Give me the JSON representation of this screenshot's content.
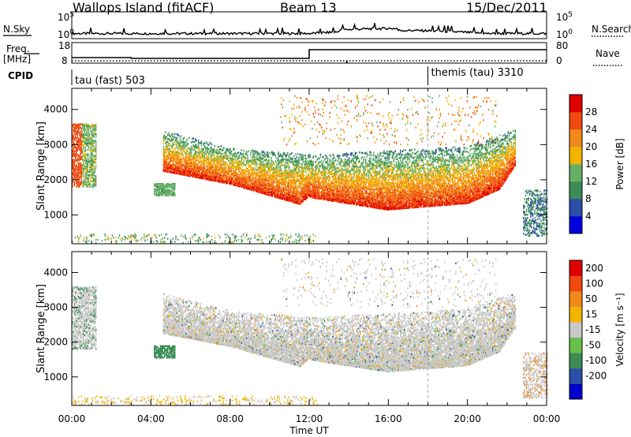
{
  "header": {
    "title": "Wallops Island (fitACF)",
    "beam": "Beam 13",
    "date": "15/Dec/2011"
  },
  "colors": {
    "power_scale": [
      "#0000dd",
      "#2a4fa8",
      "#3d8c55",
      "#66b066",
      "#f2b400",
      "#f28a1a",
      "#f04a10",
      "#e00000"
    ],
    "velocity_scale": [
      "#e00000",
      "#f04a10",
      "#f28a1a",
      "#f2b400",
      "#c8c8c8",
      "#66c04a",
      "#3d8c55",
      "#2a4fa8",
      "#0000cc"
    ]
  },
  "chart_data": [
    {
      "type": "line",
      "panel": "noise",
      "left_label": "N.Sky",
      "right_label": "N.Search",
      "left_ticks": [
        "10^5",
        "10^0"
      ],
      "right_ticks": [
        "10^5",
        "10^0"
      ]
    },
    {
      "type": "line",
      "panel": "frequency",
      "left_label": "Freq.",
      "left_unit": "[MHz]",
      "right_label": "Nave",
      "left_ticks": [
        "18",
        "8"
      ],
      "right_ticks": [
        "80",
        "0"
      ]
    },
    {
      "type": "table",
      "panel": "cpid",
      "label": "CPID",
      "entries": [
        {
          "start": "00:00",
          "text": "tau (fast) 503"
        },
        {
          "start": "18:00",
          "text": "themis (tau) 3310"
        }
      ]
    },
    {
      "type": "heatmap",
      "panel": "power",
      "ylabel": "Slant Range [km]",
      "yticks": [
        1000,
        2000,
        3000,
        4000
      ],
      "ylim": [
        180,
        4600
      ],
      "colorbar": {
        "label": "Power [dB]",
        "tick_labels": [
          "4",
          "8",
          "12",
          "16",
          "20",
          "24",
          "28"
        ],
        "range": [
          0,
          32
        ]
      }
    },
    {
      "type": "heatmap",
      "panel": "velocity",
      "ylabel": "Slant Range [km]",
      "yticks": [
        1000,
        2000,
        3000,
        4000
      ],
      "ylim": [
        180,
        4600
      ],
      "colorbar": {
        "label": "Velocity [m s⁻¹]",
        "tick_labels": [
          "200",
          "100",
          "50",
          "15",
          "-15",
          "-50",
          "-100",
          "-200"
        ]
      }
    }
  ],
  "xaxis": {
    "label": "Time UT",
    "tick_labels": [
      "00:00",
      "04:00",
      "08:00",
      "12:00",
      "16:00",
      "20:00",
      "00:00"
    ]
  }
}
